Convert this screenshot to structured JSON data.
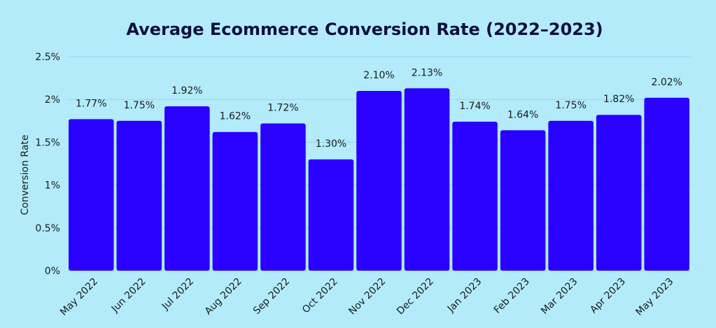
{
  "chart_data": {
    "type": "bar",
    "title": "Average Ecommerce Conversion Rate (2022–2023)",
    "xlabel": "",
    "ylabel": "Conversion Rate",
    "ylim": [
      0,
      2.5
    ],
    "yticks": [
      0,
      0.5,
      1,
      1.5,
      2,
      2.5
    ],
    "ytick_labels": [
      "0%",
      "0.5%",
      "1%",
      "1.5%",
      "2%",
      "2.5%"
    ],
    "grid": true,
    "legend": "none",
    "categories": [
      "May 2022",
      "Jun 2022",
      "Jul 2022",
      "Aug 2022",
      "Sep 2022",
      "Oct 2022",
      "Nov 2022",
      "Dec 2022",
      "Jan 2023",
      "Feb 2023",
      "Mar 2023",
      "Apr 2023",
      "May 2023"
    ],
    "values": [
      1.77,
      1.75,
      1.92,
      1.62,
      1.72,
      1.3,
      2.1,
      2.13,
      1.74,
      1.64,
      1.75,
      1.82,
      2.02
    ],
    "value_labels": [
      "1.77%",
      "1.75%",
      "1.92%",
      "1.62%",
      "1.72%",
      "1.30%",
      "2.10%",
      "2.13%",
      "1.74%",
      "1.64%",
      "1.75%",
      "1.82%",
      "2.02%"
    ],
    "colors": {
      "background": "#b3ebfb",
      "bar": "#2a00ff",
      "grid": "#9fd3e6",
      "title": "#0f0f3c",
      "text": "#1a1a1a"
    }
  }
}
